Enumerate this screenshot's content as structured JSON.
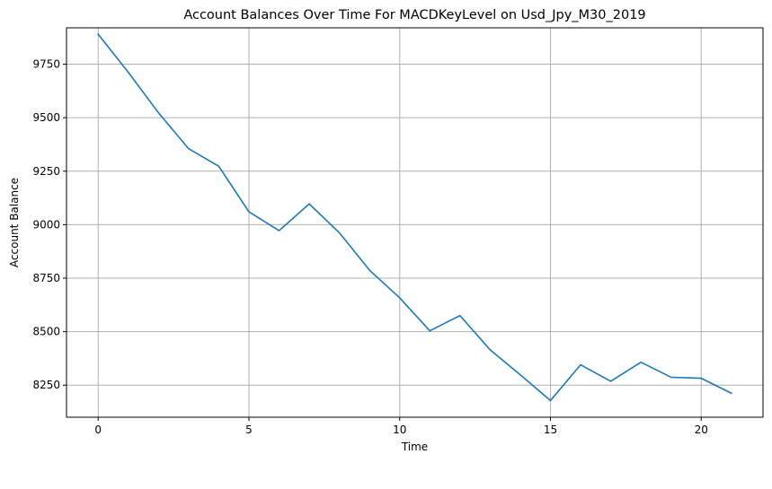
{
  "chart_data": {
    "type": "line",
    "title": "Account Balances Over Time For MACDKeyLevel on Usd_Jpy_M30_2019",
    "xlabel": "Time",
    "ylabel": "Account Balance",
    "xlim": [
      -1.05,
      22.05
    ],
    "ylim": [
      8100,
      9920
    ],
    "xticks": [
      0,
      5,
      10,
      15,
      20
    ],
    "yticks": [
      8250,
      8500,
      8750,
      9000,
      9250,
      9500,
      9750
    ],
    "grid": true,
    "series": [
      {
        "color": "#1f77b4",
        "x": [
          0,
          1,
          2,
          3,
          4,
          5,
          6,
          7,
          8,
          9,
          10,
          11,
          12,
          13,
          14,
          15,
          16,
          17,
          18,
          19,
          20,
          21
        ],
        "y": [
          9890,
          9712,
          9523,
          9355,
          9273,
          9060,
          8972,
          9097,
          8962,
          8787,
          8658,
          8504,
          8575,
          8415,
          8298,
          8178,
          8345,
          8268,
          8357,
          8287,
          8282,
          8212
        ]
      }
    ]
  }
}
